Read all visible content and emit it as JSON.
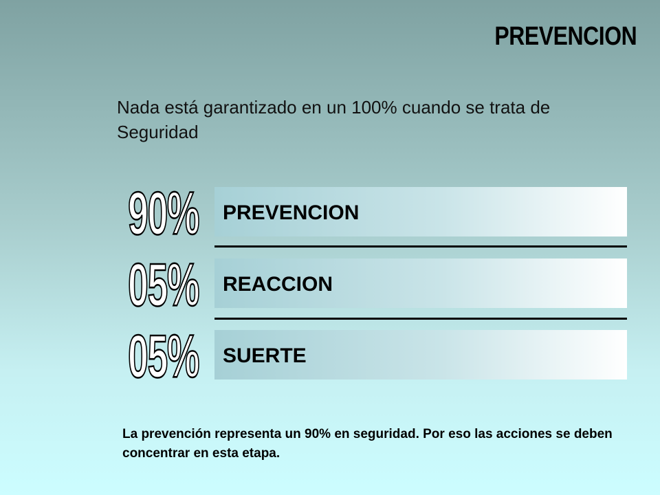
{
  "slide": {
    "title": "PREVENCION",
    "subtitle": "Nada está garantizado en un 100% cuando se trata de Seguridad",
    "rows": [
      {
        "percent": "90%",
        "label": "PREVENCION"
      },
      {
        "percent": "05%",
        "label": "REACCION"
      },
      {
        "percent": "05%",
        "label": "SUERTE"
      }
    ],
    "footer": "La prevención representa un 90% en seguridad. Por eso las acciones se deben concentrar en esta etapa."
  }
}
